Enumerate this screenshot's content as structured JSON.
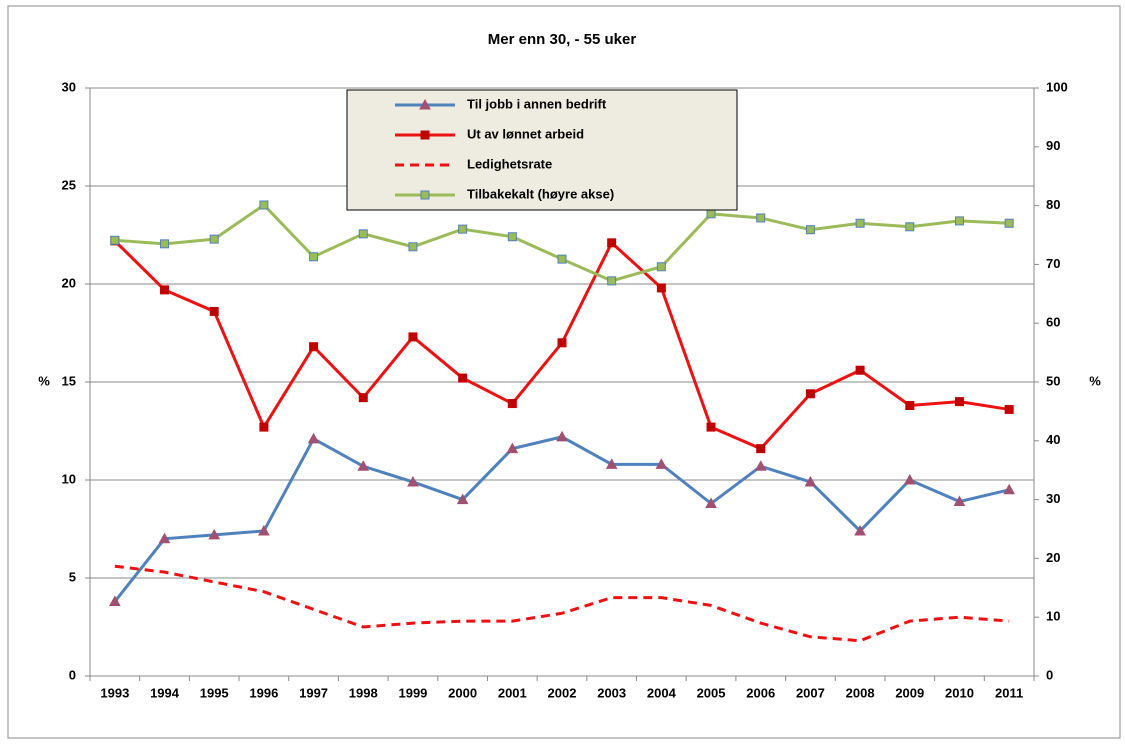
{
  "chart_data": {
    "type": "line",
    "title": "Mer enn 30, - 55 uker",
    "categories": [
      "1993",
      "1994",
      "1995",
      "1996",
      "1997",
      "1998",
      "1999",
      "2000",
      "2001",
      "2002",
      "2003",
      "2004",
      "2005",
      "2006",
      "2007",
      "2008",
      "2009",
      "2010",
      "2011"
    ],
    "ylabel": "%",
    "y2label": "%",
    "ylim": [
      0,
      30
    ],
    "yticks": [
      0,
      5,
      10,
      15,
      20,
      25,
      30
    ],
    "y2lim": [
      0,
      100
    ],
    "y2ticks": [
      0,
      10,
      20,
      30,
      40,
      50,
      60,
      70,
      80,
      90,
      100
    ],
    "grid": true,
    "legend": "top-center",
    "series": [
      {
        "name": "Til jobb i annen bedrift",
        "color": "#4f81bd",
        "marker": "triangle",
        "marker_color": "#a05070",
        "values": [
          3.8,
          7.0,
          7.2,
          7.4,
          12.1,
          10.7,
          9.9,
          9.0,
          11.6,
          12.2,
          10.8,
          10.8,
          8.8,
          10.7,
          9.9,
          7.4,
          10.0,
          8.9,
          9.5
        ]
      },
      {
        "name": "Ut av lønnet arbeid",
        "color": "#ee1111",
        "marker": "square",
        "marker_color": "#c00000",
        "values": [
          22.2,
          19.7,
          18.6,
          12.7,
          16.8,
          14.2,
          17.3,
          15.2,
          13.9,
          17.0,
          22.1,
          19.8,
          12.7,
          11.6,
          14.4,
          15.6,
          13.8,
          14.0,
          13.6
        ]
      },
      {
        "name": "Ledighetsrate",
        "color": "#ee1111",
        "dash": true,
        "marker": "none",
        "values": [
          5.6,
          5.3,
          4.8,
          4.3,
          3.4,
          2.5,
          2.7,
          2.8,
          2.8,
          3.2,
          4.0,
          4.0,
          3.6,
          2.7,
          2.0,
          1.8,
          2.8,
          3.0,
          2.8
        ]
      },
      {
        "name": "Tilbakekalt (høyre akse)",
        "color": "#9bbb59",
        "marker": "square",
        "marker_color": "#9bbb59",
        "axis": "y2",
        "values": [
          74.1,
          73.5,
          74.3,
          80.1,
          71.3,
          75.2,
          73.0,
          76.0,
          74.7,
          70.9,
          67.2,
          69.6,
          78.6,
          77.9,
          75.9,
          77.0,
          76.4,
          77.4,
          77.0
        ]
      }
    ]
  }
}
